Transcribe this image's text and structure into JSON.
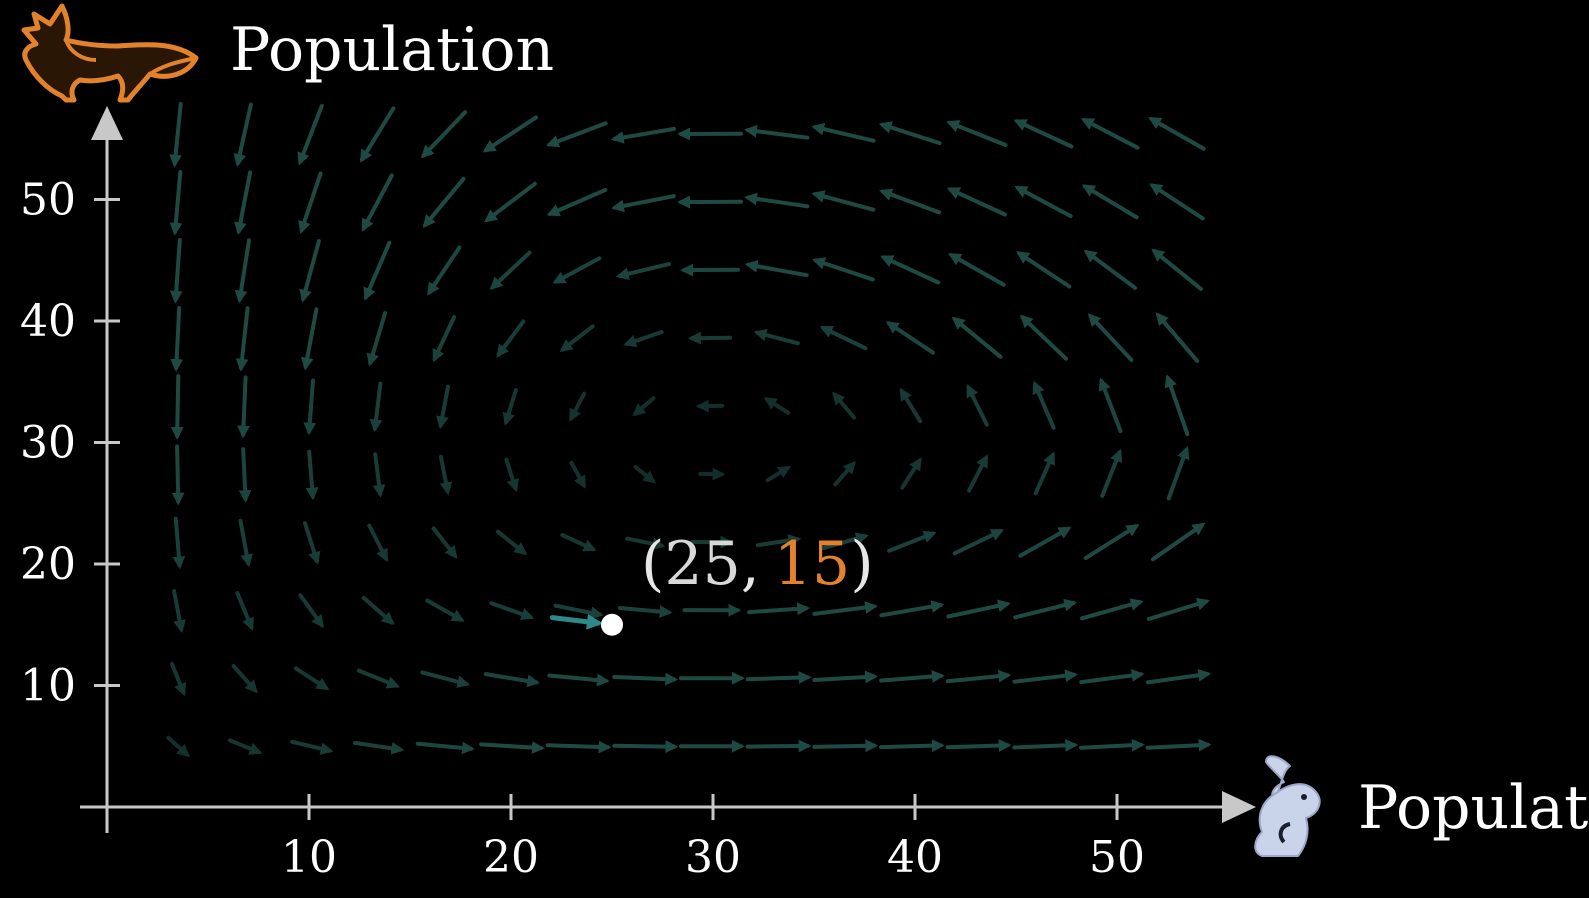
{
  "labels": {
    "y_axis": "Population",
    "x_axis": "Populat",
    "point_open": "(",
    "point_x": "25",
    "point_comma": ",",
    "point_y": "15",
    "point_close": ")"
  },
  "icons": {
    "y_axis_icon": "fox-icon",
    "x_axis_icon": "rabbit-icon"
  },
  "colors": {
    "background": "#000000",
    "axis": "#c8c8c8",
    "arrow": "#1f4a44",
    "arrow_highlight": "#2c8a88",
    "point": "#ffffff",
    "fox": "#e3822c",
    "rabbit": "#c9d3ea",
    "highlight_value": "#e3822c"
  },
  "chart_data": {
    "type": "vector_field",
    "x_ticks": [
      10,
      20,
      30,
      40,
      50
    ],
    "y_ticks": [
      10,
      20,
      30,
      40,
      50
    ],
    "xlim": [
      0,
      56
    ],
    "ylim": [
      0,
      57
    ],
    "equilibrium": [
      30,
      30
    ],
    "field_x": [
      3.5,
      6.8,
      10.1,
      13.4,
      16.7,
      20,
      23.3,
      26.6,
      29.9,
      33.2,
      36.5,
      39.8,
      43.1,
      46.4,
      49.7,
      53.0
    ],
    "field_y": [
      5,
      10.6,
      16.2,
      21.8,
      27.4,
      33,
      38.6,
      44.2,
      49.8,
      55.4
    ],
    "point": {
      "x": 25,
      "y": 15
    },
    "grid": false
  }
}
